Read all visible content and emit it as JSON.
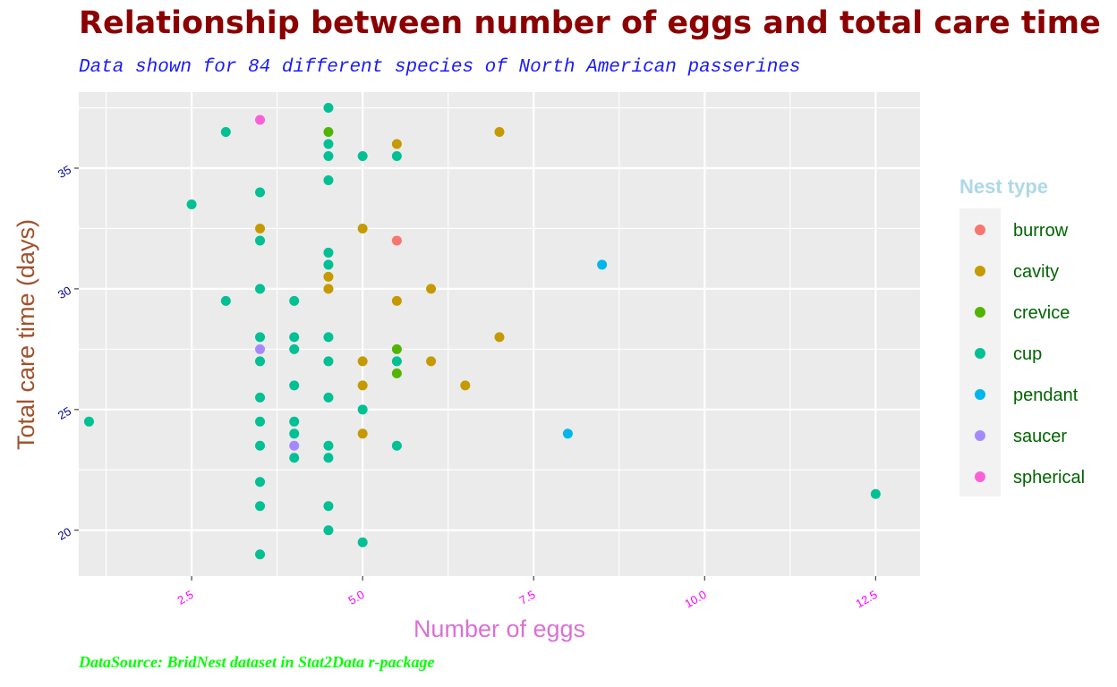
{
  "title": "Relationship between number of eggs and total care time",
  "subtitle": "Data shown for 84 different species of North American passerines",
  "caption": "DataSource: BridNest dataset in Stat2Data r-package",
  "colors": {
    "title": "#8b0000",
    "subtitle": "#1a1aff",
    "caption": "#00ff00",
    "xlabel": "#da70d6",
    "ylabel": "#a0522d",
    "xticks": "#ff00ff",
    "yticks": "#00008b",
    "legend_title": "#add8e6",
    "legend_labels": "#006400",
    "panel": "#ebebeb",
    "grid": "#ffffff"
  },
  "chart_data": {
    "type": "scatter",
    "xlabel": "Number of eggs",
    "ylabel": "Total care time (days)",
    "xlim": [
      0.85,
      13.15
    ],
    "ylim": [
      18.1,
      38.15
    ],
    "xticks": [
      {
        "value": 2.5,
        "label": "2.5"
      },
      {
        "value": 5.0,
        "label": "5.0"
      },
      {
        "value": 7.5,
        "label": "7.5"
      },
      {
        "value": 10.0,
        "label": "10.0"
      },
      {
        "value": 12.5,
        "label": "12.5"
      }
    ],
    "yticks": [
      {
        "value": 20,
        "label": "20"
      },
      {
        "value": 25,
        "label": "25"
      },
      {
        "value": 30,
        "label": "30"
      },
      {
        "value": 35,
        "label": "35"
      }
    ],
    "grid": true,
    "legend": {
      "title": "Nest type",
      "position": "right",
      "entries": [
        "burrow",
        "cavity",
        "crevice",
        "cup",
        "pendant",
        "saucer",
        "spherical"
      ]
    },
    "series": [
      {
        "name": "burrow",
        "color": "#f8766d",
        "points": [
          [
            5.5,
            32
          ]
        ]
      },
      {
        "name": "cavity",
        "color": "#c49a00",
        "points": [
          [
            3.5,
            32.5
          ],
          [
            4.5,
            30.5
          ],
          [
            4.5,
            30
          ],
          [
            5,
            32.5
          ],
          [
            5,
            27
          ],
          [
            5,
            26
          ],
          [
            5,
            24
          ],
          [
            5.5,
            36
          ],
          [
            5.5,
            29.5
          ],
          [
            6,
            30
          ],
          [
            6,
            27
          ],
          [
            6.5,
            26
          ],
          [
            7,
            36.5
          ],
          [
            7,
            28
          ]
        ]
      },
      {
        "name": "crevice",
        "color": "#53b400",
        "points": [
          [
            4.5,
            36.5
          ],
          [
            5.5,
            27.5
          ],
          [
            5.5,
            26.5
          ]
        ]
      },
      {
        "name": "cup",
        "color": "#00c094",
        "points": [
          [
            1,
            24.5
          ],
          [
            2.5,
            33.5
          ],
          [
            3,
            36.5
          ],
          [
            3,
            29.5
          ],
          [
            3.5,
            34
          ],
          [
            3.5,
            32
          ],
          [
            3.5,
            30
          ],
          [
            3.5,
            28
          ],
          [
            3.5,
            27
          ],
          [
            3.5,
            25.5
          ],
          [
            3.5,
            24.5
          ],
          [
            3.5,
            23.5
          ],
          [
            3.5,
            22
          ],
          [
            3.5,
            21
          ],
          [
            3.5,
            19
          ],
          [
            4,
            29.5
          ],
          [
            4,
            28
          ],
          [
            4,
            27.5
          ],
          [
            4,
            26
          ],
          [
            4,
            24.5
          ],
          [
            4,
            24
          ],
          [
            4,
            23
          ],
          [
            4.5,
            37.5
          ],
          [
            4.5,
            36
          ],
          [
            4.5,
            35.5
          ],
          [
            4.5,
            34.5
          ],
          [
            4.5,
            31.5
          ],
          [
            4.5,
            31
          ],
          [
            4.5,
            28
          ],
          [
            4.5,
            27
          ],
          [
            4.5,
            25.5
          ],
          [
            4.5,
            23.5
          ],
          [
            4.5,
            23
          ],
          [
            4.5,
            21
          ],
          [
            4.5,
            20
          ],
          [
            5,
            35.5
          ],
          [
            5,
            25
          ],
          [
            5,
            19.5
          ],
          [
            5.5,
            35.5
          ],
          [
            5.5,
            27
          ],
          [
            5.5,
            23.5
          ],
          [
            12.5,
            21.5
          ]
        ]
      },
      {
        "name": "pendant",
        "color": "#00b6eb",
        "points": [
          [
            8.5,
            31
          ],
          [
            8,
            24
          ]
        ]
      },
      {
        "name": "saucer",
        "color": "#a58aff",
        "points": [
          [
            3.5,
            27.5
          ],
          [
            4,
            23.5
          ]
        ]
      },
      {
        "name": "spherical",
        "color": "#fb61d7",
        "points": [
          [
            3.5,
            37
          ]
        ]
      }
    ]
  }
}
